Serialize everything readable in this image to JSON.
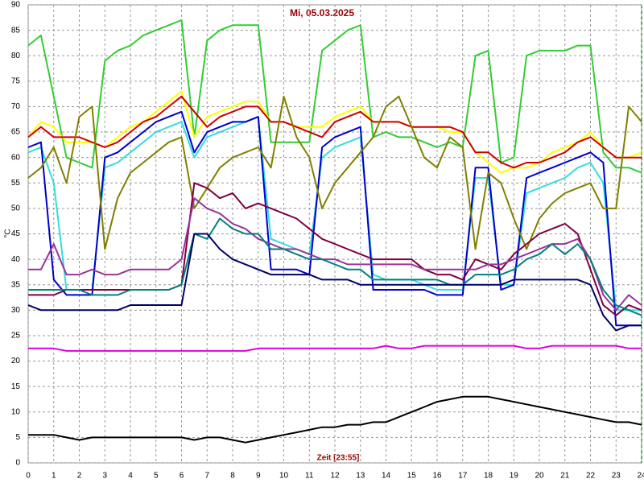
{
  "chart_data": {
    "type": "line",
    "title": "Mi, 05.03.2025",
    "x_label": "Zeit [23:55]",
    "y_label": "°C",
    "x": [
      0,
      0.5,
      1,
      1.5,
      2,
      2.5,
      3,
      3.5,
      4,
      4.5,
      5,
      5.5,
      6,
      6.5,
      7,
      7.5,
      8,
      8.5,
      9,
      9.5,
      10,
      10.5,
      11,
      11.5,
      12,
      12.5,
      13,
      13.5,
      14,
      14.5,
      15,
      15.5,
      16,
      16.5,
      17,
      17.5,
      18,
      18.5,
      19,
      19.5,
      20,
      20.5,
      21,
      21.5,
      22,
      22.5,
      23,
      23.5,
      24
    ],
    "xlim": [
      0,
      24
    ],
    "xticks": [
      0,
      1,
      2,
      3,
      4,
      5,
      6,
      7,
      8,
      9,
      10,
      11,
      12,
      13,
      14,
      15,
      16,
      17,
      18,
      19,
      20,
      21,
      22,
      23,
      24
    ],
    "ylim": [
      0,
      90
    ],
    "yticks": [
      0,
      5,
      10,
      15,
      20,
      25,
      30,
      35,
      40,
      45,
      50,
      55,
      60,
      65,
      70,
      75,
      80,
      85,
      90
    ],
    "grid": true,
    "series": [
      {
        "color": "#33cc33",
        "values": [
          82,
          84,
          72,
          60,
          59,
          58,
          79,
          81,
          82,
          84,
          85,
          86,
          87,
          64,
          83,
          85,
          86,
          86,
          86,
          63,
          63,
          63,
          63,
          81,
          83,
          85,
          86,
          64,
          65,
          64,
          64,
          63,
          62,
          63,
          62,
          80,
          81,
          59,
          60,
          80,
          81,
          81,
          81,
          82,
          82,
          61,
          58,
          58,
          57
        ]
      },
      {
        "color": "#ffff00",
        "values": [
          64,
          67,
          66,
          63,
          63,
          63,
          62,
          64,
          66,
          67,
          69,
          71,
          73,
          64,
          68,
          69,
          70,
          71,
          71,
          67,
          67,
          66,
          66,
          66,
          68,
          69,
          70,
          67,
          67,
          67,
          66,
          66,
          66,
          65,
          65,
          61,
          59,
          57,
          58,
          58,
          59,
          61,
          62,
          63,
          65,
          62,
          60,
          60,
          61
        ]
      },
      {
        "color": "#cc0000",
        "values": [
          64,
          66,
          64,
          64,
          64,
          63,
          62,
          63,
          65,
          67,
          68,
          70,
          72,
          69,
          66,
          68,
          69,
          70,
          70,
          67,
          67,
          66,
          65,
          64,
          67,
          68,
          69,
          67,
          67,
          67,
          66,
          66,
          66,
          66,
          65,
          61,
          61,
          59,
          58,
          59,
          59,
          60,
          61,
          63,
          64,
          62,
          60,
          60,
          60
        ]
      },
      {
        "color": "#33dddd",
        "values": [
          61,
          62,
          55,
          34,
          34,
          34,
          58,
          59,
          61,
          63,
          65,
          66,
          67,
          60,
          64,
          65,
          66,
          67,
          68,
          44,
          43,
          42,
          41,
          60,
          62,
          63,
          64,
          37,
          36,
          36,
          36,
          35,
          34,
          34,
          34,
          56,
          56,
          35,
          35,
          53,
          54,
          55,
          56,
          58,
          59,
          55,
          30,
          30,
          30
        ]
      },
      {
        "color": "#0000cc",
        "values": [
          62,
          63,
          36,
          33,
          33,
          33,
          60,
          61,
          63,
          65,
          67,
          68,
          69,
          61,
          65,
          66,
          67,
          67,
          68,
          38,
          38,
          38,
          37,
          62,
          64,
          65,
          66,
          34,
          34,
          34,
          34,
          34,
          33,
          33,
          33,
          58,
          58,
          34,
          35,
          56,
          57,
          58,
          59,
          60,
          61,
          59,
          27,
          27,
          27
        ]
      },
      {
        "color": "#808000",
        "values": [
          56,
          58,
          62,
          55,
          68,
          70,
          42,
          52,
          57,
          59,
          61,
          63,
          64,
          50,
          54,
          58,
          60,
          61,
          62,
          58,
          72,
          64,
          60,
          50,
          55,
          58,
          61,
          64,
          70,
          72,
          66,
          60,
          58,
          64,
          62,
          42,
          57,
          55,
          48,
          42,
          48,
          51,
          53,
          54,
          55,
          50,
          50,
          70,
          67
        ]
      },
      {
        "color": "#800040",
        "values": [
          33,
          33,
          33,
          34,
          34,
          34,
          34,
          34,
          34,
          34,
          34,
          34,
          35,
          55,
          54,
          52,
          53,
          50,
          51,
          50,
          49,
          48,
          46,
          44,
          43,
          42,
          41,
          40,
          40,
          40,
          40,
          38,
          37,
          37,
          36,
          40,
          39,
          38,
          41,
          43,
          45,
          46,
          47,
          45,
          38,
          31,
          29,
          31,
          30
        ]
      },
      {
        "color": "#993399",
        "values": [
          38,
          38,
          43,
          37,
          37,
          38,
          37,
          37,
          38,
          38,
          38,
          38,
          40,
          52,
          50,
          49,
          47,
          46,
          44,
          43,
          42,
          42,
          41,
          40,
          40,
          39,
          39,
          39,
          39,
          39,
          39,
          38,
          38,
          38,
          38,
          38,
          39,
          39,
          40,
          41,
          42,
          43,
          43,
          44,
          40,
          33,
          30,
          33,
          31
        ]
      },
      {
        "color": "#008080",
        "values": [
          34,
          34,
          34,
          34,
          34,
          33,
          33,
          33,
          34,
          34,
          34,
          34,
          35,
          45,
          44,
          48,
          46,
          45,
          45,
          42,
          42,
          41,
          40,
          40,
          39,
          38,
          38,
          36,
          36,
          36,
          36,
          36,
          36,
          35,
          35,
          37,
          37,
          37,
          38,
          40,
          41,
          43,
          41,
          43,
          40,
          34,
          31,
          30,
          29
        ]
      },
      {
        "color": "#000066",
        "values": [
          31,
          30,
          30,
          30,
          30,
          30,
          30,
          30,
          31,
          31,
          31,
          31,
          31,
          45,
          45,
          42,
          40,
          39,
          38,
          37,
          37,
          37,
          37,
          36,
          36,
          36,
          35,
          35,
          35,
          35,
          35,
          35,
          35,
          35,
          35,
          35,
          35,
          35,
          36,
          36,
          36,
          36,
          36,
          36,
          35,
          29,
          26,
          27,
          27
        ]
      },
      {
        "color": "#dd00dd",
        "values": [
          22.5,
          22.5,
          22.5,
          22,
          22,
          22,
          22,
          22,
          22,
          22,
          22,
          22,
          22,
          22,
          22,
          22,
          22,
          22,
          22.5,
          22.5,
          22.5,
          22.5,
          22.5,
          22.5,
          22.5,
          22.5,
          22.5,
          22.5,
          23,
          22.5,
          22.5,
          23,
          23,
          23,
          23,
          23,
          23,
          23,
          23,
          22.5,
          22.5,
          23,
          23,
          23,
          23,
          23,
          23,
          22.5,
          22.5
        ]
      },
      {
        "color": "#000000",
        "values": [
          5.5,
          5.5,
          5.5,
          5,
          4.5,
          5,
          5,
          5,
          5,
          5,
          5,
          5,
          5,
          4.5,
          5,
          5,
          4.5,
          4,
          4.5,
          5,
          5.5,
          6,
          6.5,
          7,
          7,
          7.5,
          7.5,
          8,
          8,
          9,
          10,
          11,
          12,
          12.5,
          13,
          13,
          13,
          12.5,
          12,
          11.5,
          11,
          10.5,
          10,
          9.5,
          9,
          8.5,
          8,
          8,
          7.5
        ]
      }
    ]
  }
}
